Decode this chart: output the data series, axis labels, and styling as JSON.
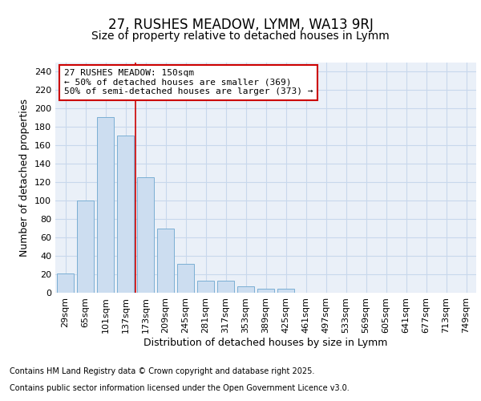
{
  "title_line1": "27, RUSHES MEADOW, LYMM, WA13 9RJ",
  "title_line2": "Size of property relative to detached houses in Lymm",
  "xlabel": "Distribution of detached houses by size in Lymm",
  "ylabel": "Number of detached properties",
  "categories": [
    "29sqm",
    "65sqm",
    "101sqm",
    "137sqm",
    "173sqm",
    "209sqm",
    "245sqm",
    "281sqm",
    "317sqm",
    "353sqm",
    "389sqm",
    "425sqm",
    "461sqm",
    "497sqm",
    "533sqm",
    "569sqm",
    "605sqm",
    "641sqm",
    "677sqm",
    "713sqm",
    "749sqm"
  ],
  "values": [
    21,
    100,
    190,
    170,
    125,
    70,
    31,
    13,
    13,
    7,
    4,
    4,
    0,
    0,
    0,
    0,
    0,
    0,
    0,
    0,
    0
  ],
  "bar_color": "#ccddf0",
  "bar_edge_color": "#7bafd4",
  "red_line_x": 3.5,
  "annotation_text": "27 RUSHES MEADOW: 150sqm\n← 50% of detached houses are smaller (369)\n50% of semi-detached houses are larger (373) →",
  "annotation_box_facecolor": "#ffffff",
  "annotation_box_edgecolor": "#cc0000",
  "ylim": [
    0,
    250
  ],
  "yticks": [
    0,
    20,
    40,
    60,
    80,
    100,
    120,
    140,
    160,
    180,
    200,
    220,
    240
  ],
  "fig_bg_color": "#ffffff",
  "plot_bg_color": "#eaf0f8",
  "grid_color": "#c8d8ec",
  "title1_fontsize": 12,
  "title2_fontsize": 10,
  "axis_label_fontsize": 9,
  "tick_fontsize": 8,
  "annot_fontsize": 8,
  "footer_fontsize": 7,
  "footer_line1": "Contains HM Land Registry data © Crown copyright and database right 2025.",
  "footer_line2": "Contains public sector information licensed under the Open Government Licence v3.0."
}
